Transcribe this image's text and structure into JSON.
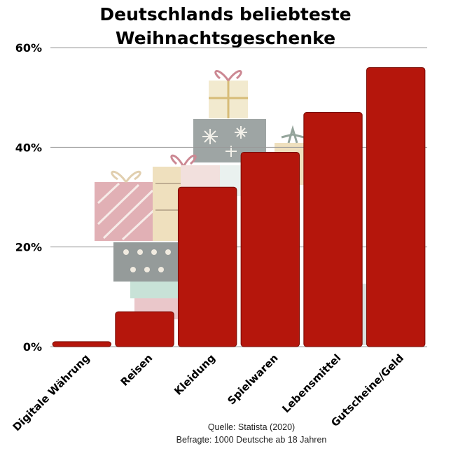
{
  "chart_data": {
    "type": "bar",
    "title_line1": "Deutschlands beliebteste",
    "title_line2": "Weihnachtsgeschenke",
    "categories": [
      "Digitale Währung",
      "Reisen",
      "Kleidung",
      "Spielwaren",
      "Lebensmittel",
      "Gutscheine/Geld"
    ],
    "values": [
      1,
      7,
      32,
      39,
      47,
      56
    ],
    "unit": "%",
    "ylim": [
      0,
      60
    ],
    "yticks": [
      0,
      20,
      40,
      60
    ],
    "ytick_labels": [
      "0%",
      "20%",
      "40%",
      "60%"
    ],
    "grid": true,
    "xlabel": "",
    "ylabel": ""
  },
  "source": {
    "line1": "Quelle: Statista (2020)",
    "line2": "Befragte: 1000 Deutsche ab 18 Jahren"
  },
  "colors": {
    "bar": "#b5160c",
    "bar_stroke": "#7a0d06",
    "grid": "#9a9a9a"
  },
  "decoration": {
    "icon": "gift-stack-icon"
  }
}
